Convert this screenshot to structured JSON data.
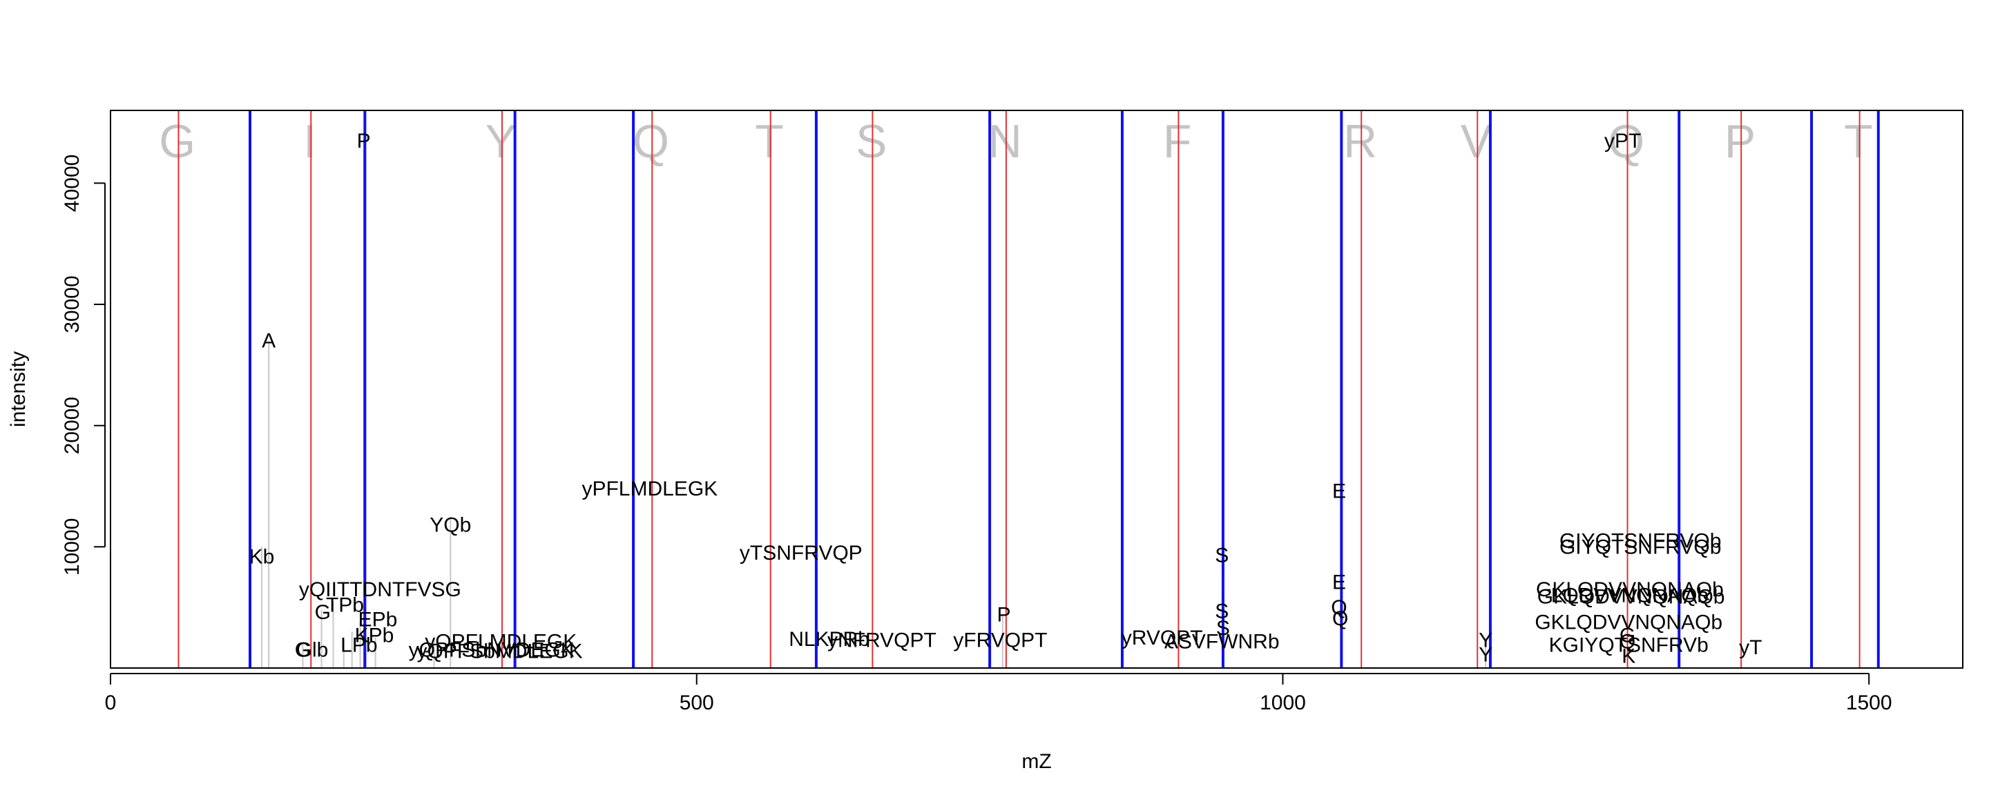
{
  "chart_data": {
    "type": "spectrum",
    "title": "",
    "xlabel": "mZ",
    "ylabel": "intensity",
    "xlim": [
      0,
      1580
    ],
    "ylim": [
      0,
      46000
    ],
    "x_ticks": [
      0,
      500,
      1000,
      1500
    ],
    "y_ticks": [
      10000,
      20000,
      30000,
      40000
    ],
    "grid": false,
    "legend": "none",
    "colors": {
      "peak": "#c8c8c8",
      "red_lines": "#e53030",
      "blue_lines": "#1010ee",
      "residue_letters": "#c4c4c4",
      "labels": "#000000"
    },
    "residue_letters": [
      {
        "mz": 57,
        "letter": "G"
      },
      {
        "mz": 170,
        "letter": "I"
      },
      {
        "mz": 333,
        "letter": "Y"
      },
      {
        "mz": 461,
        "letter": "Q"
      },
      {
        "mz": 562,
        "letter": "T"
      },
      {
        "mz": 649,
        "letter": "S"
      },
      {
        "mz": 763,
        "letter": "N"
      },
      {
        "mz": 910,
        "letter": "F"
      },
      {
        "mz": 1066,
        "letter": "R"
      },
      {
        "mz": 1165,
        "letter": "V"
      },
      {
        "mz": 1293,
        "letter": "Q"
      },
      {
        "mz": 1390,
        "letter": "P"
      },
      {
        "mz": 1491,
        "letter": "T"
      }
    ],
    "red_lines": [
      58,
      171,
      334,
      462,
      563,
      650,
      764,
      911,
      1067,
      1166,
      1294,
      1391,
      1492
    ],
    "blue_lines": [
      119,
      217,
      345,
      446,
      602,
      750,
      863,
      949,
      1050,
      1177,
      1338,
      1451,
      1508
    ],
    "peaks": [
      {
        "mz": 129,
        "intensity": 10000
      },
      {
        "mz": 135,
        "intensity": 27000
      },
      {
        "mz": 164,
        "intensity": 2000
      },
      {
        "mz": 180,
        "intensity": 4800
      },
      {
        "mz": 190,
        "intensity": 5500
      },
      {
        "mz": 199,
        "intensity": 2200
      },
      {
        "mz": 206,
        "intensity": 3000
      },
      {
        "mz": 213,
        "intensity": 3800
      },
      {
        "mz": 216,
        "intensity": 43500
      },
      {
        "mz": 226,
        "intensity": 2500
      },
      {
        "mz": 276,
        "intensity": 2500
      },
      {
        "mz": 290,
        "intensity": 12500
      },
      {
        "mz": 761,
        "intensity": 4500
      },
      {
        "mz": 1173,
        "intensity": 2500
      },
      {
        "mz": 1294,
        "intensity": 3500
      }
    ],
    "annotations": [
      {
        "mz": 135,
        "intensity": 27000,
        "text": "A"
      },
      {
        "mz": 216,
        "intensity": 43500,
        "text": "P"
      },
      {
        "mz": 129,
        "intensity": 9200,
        "text": "Kb"
      },
      {
        "mz": 290,
        "intensity": 11800,
        "text": "YQb"
      },
      {
        "mz": 230,
        "intensity": 6500,
        "text": "yQIITTDNTFVSG"
      },
      {
        "mz": 200,
        "intensity": 5200,
        "text": "TPb"
      },
      {
        "mz": 181,
        "intensity": 4600,
        "text": "G"
      },
      {
        "mz": 228,
        "intensity": 4000,
        "text": "EPb"
      },
      {
        "mz": 225,
        "intensity": 2700,
        "text": "KPb"
      },
      {
        "mz": 212,
        "intensity": 1900,
        "text": "LPb"
      },
      {
        "mz": 164,
        "intensity": 1500,
        "text": "G"
      },
      {
        "mz": 172,
        "intensity": 1500,
        "text": "Glb"
      },
      {
        "mz": 333,
        "intensity": 2200,
        "text": "yQPFLMDLEGK"
      },
      {
        "mz": 325,
        "intensity": 1500,
        "text": "yQPFSbNVDEGK"
      },
      {
        "mz": 332,
        "intensity": 1400,
        "text": "yQPFSbMDLEGK"
      },
      {
        "mz": 460,
        "intensity": 14800,
        "text": "yPFLMDLEGK"
      },
      {
        "mz": 589,
        "intensity": 9500,
        "text": "yTSNFRVQP"
      },
      {
        "mz": 613,
        "intensity": 2400,
        "text": "NLKPRb"
      },
      {
        "mz": 658,
        "intensity": 2300,
        "text": "yNFRVQPT"
      },
      {
        "mz": 762,
        "intensity": 4400,
        "text": "P"
      },
      {
        "mz": 759,
        "intensity": 2300,
        "text": "yFRVQPT"
      },
      {
        "mz": 897,
        "intensity": 2500,
        "text": "yRVQPT"
      },
      {
        "mz": 948,
        "intensity": 2200,
        "text": "ASVFWNRb"
      },
      {
        "mz": 948,
        "intensity": 9300,
        "text": "S"
      },
      {
        "mz": 948,
        "intensity": 4700,
        "text": "S"
      },
      {
        "mz": 949,
        "intensity": 3300,
        "text": "S"
      },
      {
        "mz": 1048,
        "intensity": 14600,
        "text": "E"
      },
      {
        "mz": 1048,
        "intensity": 7100,
        "text": "E"
      },
      {
        "mz": 1048,
        "intensity": 5000,
        "text": "Q"
      },
      {
        "mz": 1049,
        "intensity": 4100,
        "text": "Q"
      },
      {
        "mz": 1173,
        "intensity": 2300,
        "text": "Y"
      },
      {
        "mz": 1173,
        "intensity": 1100,
        "text": "Y"
      },
      {
        "mz": 1290,
        "intensity": 43500,
        "text": "yPT"
      },
      {
        "mz": 1305,
        "intensity": 10500,
        "text": "GIYQTSNFRVQb"
      },
      {
        "mz": 1305,
        "intensity": 10000,
        "text": "GIYQTSNFRVQb"
      },
      {
        "mz": 1296,
        "intensity": 6500,
        "text": "GKLQDVVNQNAQb"
      },
      {
        "mz": 1296,
        "intensity": 6000,
        "text": "LQDVVNQNAQb"
      },
      {
        "mz": 1297,
        "intensity": 5900,
        "text": "GKLQDVVNQNAQb"
      },
      {
        "mz": 1295,
        "intensity": 3800,
        "text": "GKLQDVVNQNAQb"
      },
      {
        "mz": 1294,
        "intensity": 2700,
        "text": "G"
      },
      {
        "mz": 1294,
        "intensity": 2200,
        "text": "Q"
      },
      {
        "mz": 1295,
        "intensity": 1000,
        "text": "K"
      },
      {
        "mz": 1295,
        "intensity": 1900,
        "text": "KGIYQTSNFRVb"
      },
      {
        "mz": 1399,
        "intensity": 1700,
        "text": "yT"
      }
    ]
  }
}
